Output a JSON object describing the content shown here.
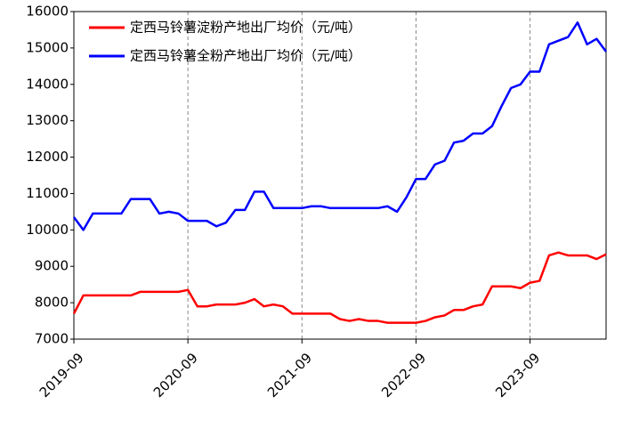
{
  "chart_data": {
    "type": "line",
    "series": [
      {
        "name": "定西马铃薯淀粉产地出厂均价（元/吨）",
        "color": "#ff0000",
        "values": [
          7700,
          8200,
          8200,
          8200,
          8200,
          8200,
          8200,
          8300,
          8300,
          8300,
          8300,
          8300,
          8350,
          7900,
          7900,
          7950,
          7950,
          7950,
          8000,
          8100,
          7900,
          7950,
          7900,
          7700,
          7700,
          7700,
          7700,
          7700,
          7550,
          7500,
          7550,
          7500,
          7500,
          7450,
          7450,
          7450,
          7450,
          7500,
          7600,
          7650,
          7800,
          7800,
          7900,
          7950,
          8450,
          8450,
          8450,
          8400,
          8550,
          8600,
          9300,
          9380,
          9300,
          9300,
          9300,
          9200,
          9330
        ]
      },
      {
        "name": "定西马铃薯全粉产地出厂均价（元/吨）",
        "color": "#0000ff",
        "values": [
          10350,
          10000,
          10450,
          10450,
          10450,
          10450,
          10850,
          10850,
          10850,
          10450,
          10500,
          10450,
          10250,
          10250,
          10250,
          10100,
          10200,
          10550,
          10550,
          11050,
          11050,
          10600,
          10600,
          10600,
          10600,
          10650,
          10650,
          10600,
          10600,
          10600,
          10600,
          10600,
          10600,
          10650,
          10500,
          10900,
          11400,
          11400,
          11800,
          11900,
          12400,
          12450,
          12650,
          12650,
          12850,
          13400,
          13900,
          14000,
          14350,
          14350,
          15100,
          15200,
          15300,
          15700,
          15100,
          15250,
          14900
        ]
      }
    ],
    "x": [
      "2019-09",
      "2019-10",
      "2019-11",
      "2019-12",
      "2020-01",
      "2020-02",
      "2020-03",
      "2020-04",
      "2020-05",
      "2020-06",
      "2020-07",
      "2020-08",
      "2020-09",
      "2020-10",
      "2020-11",
      "2020-12",
      "2021-01",
      "2021-02",
      "2021-03",
      "2021-04",
      "2021-05",
      "2021-06",
      "2021-07",
      "2021-08",
      "2021-09",
      "2021-10",
      "2021-11",
      "2021-12",
      "2022-01",
      "2022-02",
      "2022-03",
      "2022-04",
      "2022-05",
      "2022-06",
      "2022-07",
      "2022-08",
      "2022-09",
      "2022-10",
      "2022-11",
      "2022-12",
      "2023-01",
      "2023-02",
      "2023-03",
      "2023-04",
      "2023-05",
      "2023-06",
      "2023-07",
      "2023-08",
      "2023-09",
      "2023-10",
      "2023-11",
      "2023-12",
      "2024-01",
      "2024-02",
      "2024-03",
      "2024-04",
      "2024-05"
    ],
    "xlim": [
      "2019-09",
      "2024-05"
    ],
    "xticks": [
      "2019-09",
      "2020-09",
      "2021-09",
      "2022-09",
      "2023-09"
    ],
    "ylim": [
      7000,
      16000
    ],
    "yticks": [
      7000,
      8000,
      9000,
      10000,
      11000,
      12000,
      13000,
      14000,
      15000,
      16000
    ],
    "grid": "x",
    "legend": "upper left"
  }
}
